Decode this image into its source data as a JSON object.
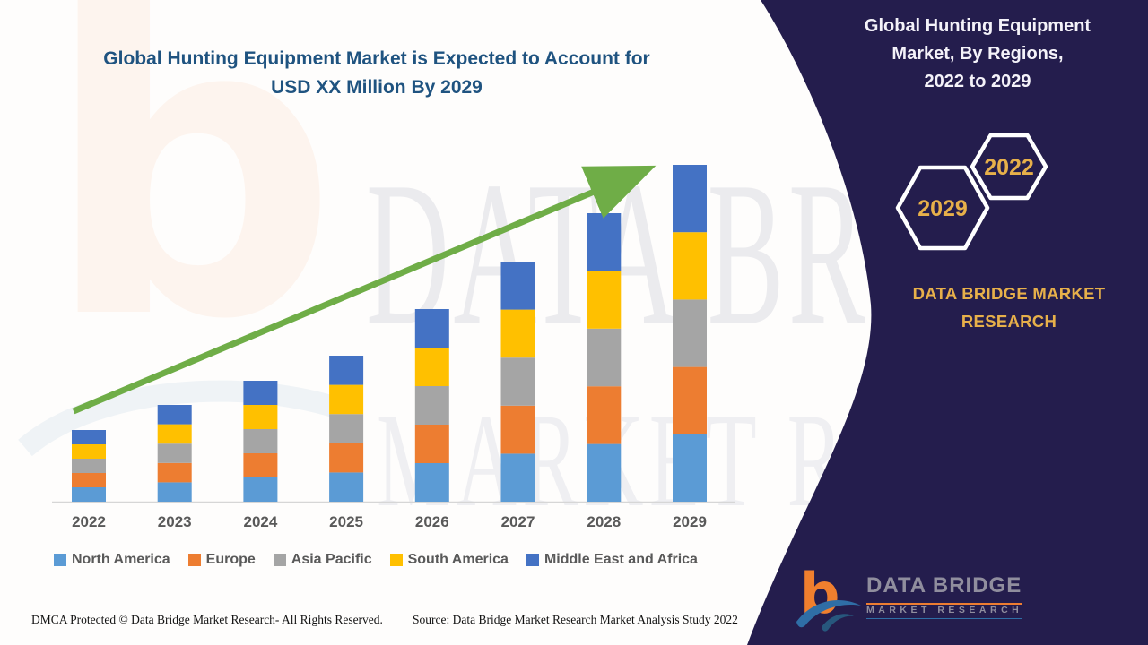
{
  "header": {
    "title_line1": "Global Hunting Equipment Market is Expected to Account for",
    "title_line2": "USD XX Million By 2029"
  },
  "chart_data": {
    "type": "bar",
    "stacked": true,
    "title": "Global Hunting Equipment Market is Expected to Account for USD XX Million By 2029",
    "xlabel": "",
    "ylabel": "",
    "y_axis_labels_shown": false,
    "units": "relative height units (y-axis unlabeled in source; values estimated from bar heights)",
    "grid": false,
    "legend_position": "bottom",
    "trend_arrow": true,
    "categories": [
      "2022",
      "2023",
      "2024",
      "2025",
      "2026",
      "2027",
      "2028",
      "2029"
    ],
    "series": [
      {
        "name": "North America",
        "color": "#5B9BD5",
        "values": [
          16,
          21.6,
          27,
          32.6,
          43,
          53.6,
          64.4,
          75.2
        ]
      },
      {
        "name": "Europe",
        "color": "#ED7D31",
        "values": [
          16,
          21.6,
          27,
          32.6,
          43,
          53.6,
          64.4,
          75.2
        ]
      },
      {
        "name": "Asia Pacific",
        "color": "#A5A5A5",
        "values": [
          16,
          21.6,
          27,
          32.6,
          43,
          53.6,
          64.4,
          75.2
        ]
      },
      {
        "name": "South America",
        "color": "#FFC000",
        "values": [
          16,
          21.6,
          27,
          32.6,
          43,
          53.6,
          64.4,
          75.2
        ]
      },
      {
        "name": "Middle East and Africa",
        "color": "#4472C4",
        "values": [
          16,
          21.6,
          27,
          32.6,
          43,
          53.6,
          64.4,
          75.2
        ]
      }
    ],
    "stack_totals": [
      80,
      108,
      135,
      163,
      215,
      268,
      322,
      376
    ]
  },
  "legend": {
    "items": [
      {
        "label": "North America",
        "color": "#5B9BD5"
      },
      {
        "label": "Europe",
        "color": "#ED7D31"
      },
      {
        "label": "Asia Pacific",
        "color": "#A5A5A5"
      },
      {
        "label": "South America",
        "color": "#FFC000"
      },
      {
        "label": "Middle East and Africa",
        "color": "#4472C4"
      }
    ]
  },
  "footer": {
    "dmca": "DMCA Protected © Data Bridge Market Research- All Rights Reserved.",
    "source": "Source: Data Bridge Market Research Market Analysis Study 2022"
  },
  "panel": {
    "title_line1": "Global Hunting Equipment",
    "title_line2": "Market, By Regions,",
    "title_line3": "2022 to 2029",
    "hexagon_small_label": "2022",
    "hexagon_large_label": "2029",
    "brand_line1": "DATA BRIDGE MARKET",
    "brand_line2": "RESEARCH",
    "logo_letter": "b",
    "logo_name": "DATA BRIDGE",
    "logo_sub": "MARKET RESEARCH",
    "colors": {
      "background": "#241d4d",
      "gold": "#e7b04a"
    }
  },
  "watermark": {
    "line1": "DATA BRIDGE",
    "line2": "MARKET RESEARCH"
  }
}
